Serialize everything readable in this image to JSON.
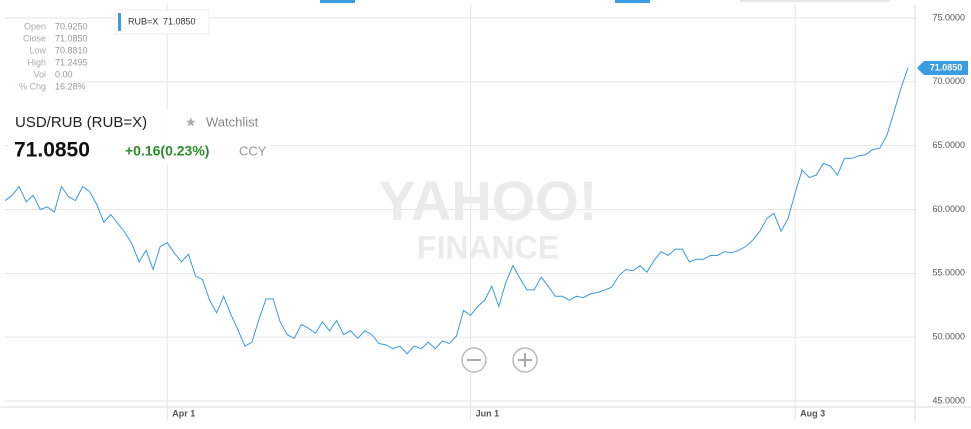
{
  "ohlc": [
    [
      "Open",
      "70.9250"
    ],
    [
      "Close",
      "71.0850"
    ],
    [
      "Low",
      "70.8810"
    ],
    [
      "High",
      "71.2495"
    ],
    [
      "Vol",
      "0.00"
    ],
    [
      "% Chg",
      "16.28%"
    ]
  ],
  "quote": {
    "symbol": "USD/RUB (RUB=X)",
    "watchlist": "Watchlist",
    "price": "71.0850",
    "change": "+0.16(0.23%)",
    "currency": "CCY"
  },
  "watermark": {
    "logo": "YAHOO!",
    "sub": "FINANCE"
  },
  "chart_data": {
    "type": "line",
    "categories": [
      null,
      null,
      null,
      null,
      null,
      null,
      null,
      null,
      null,
      null,
      null,
      null,
      null,
      null,
      null,
      null,
      null,
      null,
      null,
      null,
      null,
      null,
      null,
      "Apr 1",
      null,
      null,
      null,
      null,
      null,
      null,
      null,
      null,
      null,
      null,
      null,
      null,
      null,
      null,
      null,
      null,
      null,
      null,
      null,
      null,
      null,
      null,
      null,
      null,
      null,
      null,
      null,
      null,
      null,
      null,
      null,
      null,
      null,
      null,
      null,
      null,
      null,
      null,
      null,
      null,
      null,
      null,
      "Jun 1",
      null,
      null,
      null,
      null,
      null,
      null,
      null,
      null,
      null,
      null,
      null,
      null,
      null,
      null,
      null,
      null,
      null,
      null,
      null,
      null,
      null,
      null,
      null,
      null,
      null,
      null,
      null,
      null,
      null,
      null,
      null,
      null,
      null,
      null,
      null,
      null,
      null,
      null,
      null,
      null,
      null,
      null,
      null,
      null,
      null,
      "Aug 3",
      null,
      null,
      null,
      null,
      null,
      null,
      null,
      null,
      null,
      null,
      null,
      null,
      null,
      null,
      null,
      null
    ],
    "series": [
      {
        "name": "RUB=X",
        "color": "#3a9be0",
        "values": [
          60.7,
          61.1,
          61.8,
          60.6,
          61.1,
          60.0,
          60.2,
          59.8,
          61.8,
          61.0,
          60.7,
          61.8,
          61.4,
          60.4,
          59.0,
          59.6,
          58.9,
          58.2,
          57.3,
          55.9,
          56.8,
          55.3,
          57.1,
          57.4,
          56.6,
          55.9,
          56.5,
          54.8,
          54.5,
          52.9,
          51.9,
          53.2,
          51.8,
          50.6,
          49.3,
          49.6,
          51.4,
          53.0,
          53.0,
          51.2,
          50.2,
          49.9,
          51.0,
          50.7,
          50.3,
          51.2,
          50.5,
          51.3,
          50.2,
          50.5,
          49.9,
          50.5,
          50.2,
          49.5,
          49.4,
          49.1,
          49.3,
          48.7,
          49.3,
          49.1,
          49.6,
          49.1,
          49.7,
          49.5,
          50.1,
          52.1,
          51.7,
          52.4,
          52.9,
          54.0,
          52.4,
          54.3,
          55.6,
          54.6,
          53.7,
          53.7,
          54.7,
          54.0,
          53.2,
          53.2,
          52.9,
          53.2,
          53.1,
          53.4,
          53.5,
          53.7,
          53.9,
          54.8,
          55.3,
          55.2,
          55.6,
          55.1,
          56.0,
          56.7,
          56.4,
          56.9,
          56.9,
          55.9,
          56.1,
          56.1,
          56.4,
          56.4,
          56.7,
          56.6,
          56.8,
          57.1,
          57.6,
          58.3,
          59.3,
          59.7,
          58.3,
          59.3,
          61.3,
          63.1,
          62.5,
          62.7,
          63.6,
          63.4,
          62.7,
          64.0,
          64.0,
          64.2,
          64.3,
          64.7,
          64.8,
          65.8,
          67.6,
          69.5,
          71.085
        ]
      }
    ],
    "last_value_label": "71.0850",
    "ylim": [
      45,
      75
    ],
    "yticks": [
      {
        "value": 45,
        "label": "45.0000"
      },
      {
        "value": 50,
        "label": "50.0000"
      },
      {
        "value": 55,
        "label": "55.0000"
      },
      {
        "value": 60,
        "label": "60.0000"
      },
      {
        "value": 65,
        "label": "65.0000"
      },
      {
        "value": 70,
        "label": "70.0000"
      },
      {
        "value": 75,
        "label": "75.0000"
      }
    ],
    "grid": true
  }
}
